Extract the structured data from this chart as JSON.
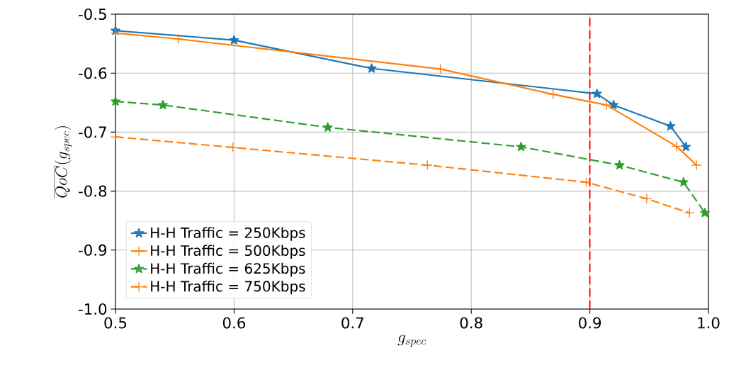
{
  "chart_data": {
    "type": "line",
    "xlabel": "g_{spec}",
    "ylabel": "\\overline{QoC}(g_{spec})",
    "xlim": [
      0.5,
      1.0
    ],
    "ylim": [
      -1.0,
      -0.5
    ],
    "xticks": [
      0.5,
      0.6,
      0.7,
      0.8,
      0.9,
      {
        "value": 1.0,
        "label": "1.0"
      }
    ],
    "yticks": [
      {
        "value": -1.0,
        "label": "-1.0"
      },
      -0.9,
      -0.8,
      -0.7,
      -0.6,
      -0.5
    ],
    "grid": true,
    "legend": "bottom left",
    "ref_lines": [
      {
        "axis": "x",
        "value": 0.9,
        "color": "#ff0000",
        "line_style": "dashed"
      }
    ],
    "series": [
      {
        "name": "H-H Traffic = 250Kbps",
        "color": "#1f77b4",
        "marker": "star",
        "line_style": "solid",
        "x": [
          0.5,
          0.6,
          0.716,
          0.906,
          0.92,
          0.968,
          0.981
        ],
        "values": [
          -0.528,
          -0.544,
          -0.592,
          -0.635,
          -0.654,
          -0.69,
          -0.725
        ]
      },
      {
        "name": "H-H Traffic = 500Kbps",
        "color": "#ff7f0e",
        "marker": "cross",
        "line_style": "solid",
        "x": [
          0.5,
          0.553,
          0.774,
          0.869,
          0.914,
          0.973,
          0.99
        ],
        "values": [
          -0.532,
          -0.542,
          -0.593,
          -0.636,
          -0.654,
          -0.724,
          -0.756
        ]
      },
      {
        "name": "H-H Traffic = 625Kbps",
        "color": "#2ca02c",
        "marker": "star",
        "line_style": "dashed",
        "x": [
          0.5,
          0.54,
          0.679,
          0.842,
          0.925,
          0.979,
          0.997
        ],
        "values": [
          -0.648,
          -0.654,
          -0.692,
          -0.725,
          -0.756,
          -0.785,
          -0.837
        ]
      },
      {
        "name": "H-H Traffic = 750Kbps",
        "color": "#ff7f0e",
        "marker": "cross",
        "line_style": "dashed",
        "x": [
          0.5,
          0.599,
          0.763,
          0.897,
          0.948,
          0.984
        ],
        "values": [
          -0.708,
          -0.726,
          -0.756,
          -0.785,
          -0.813,
          -0.837
        ]
      }
    ]
  }
}
